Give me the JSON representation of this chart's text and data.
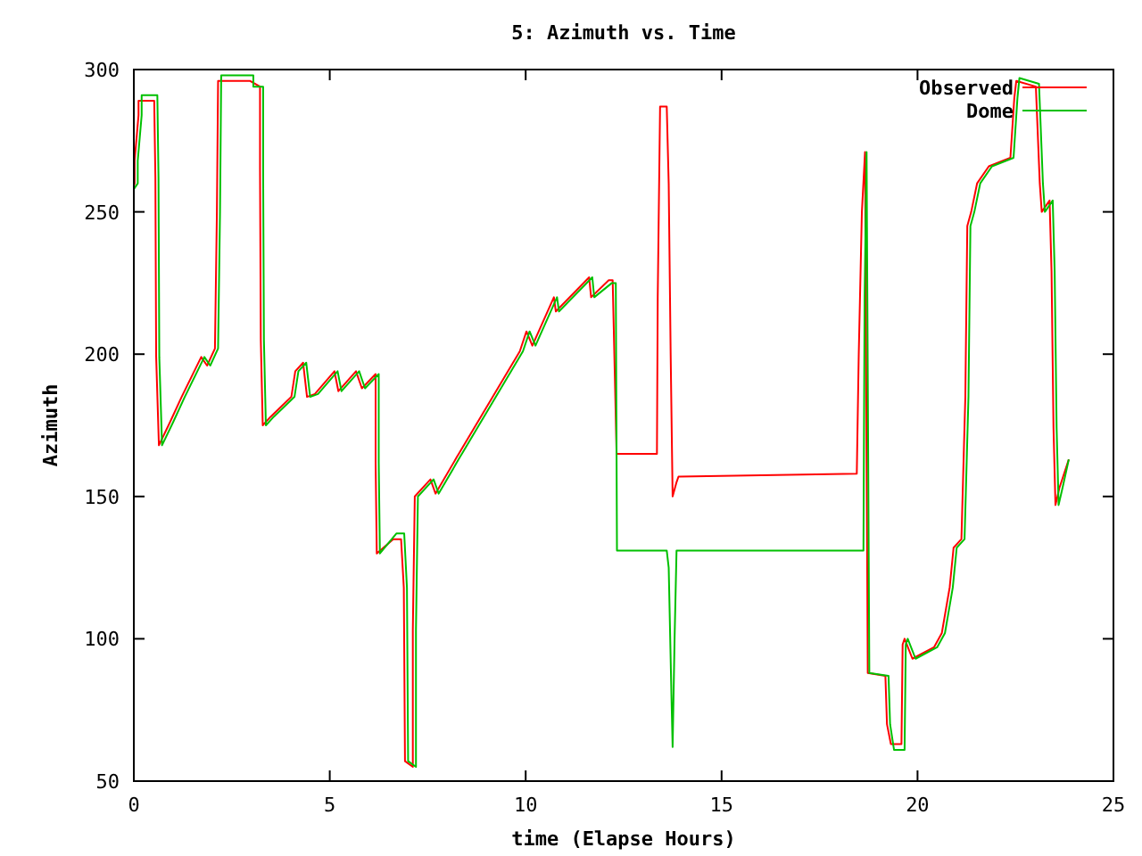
{
  "chart_data": {
    "type": "line",
    "title": "5: Azimuth vs. Time",
    "xlabel": "time (Elapse Hours)",
    "ylabel": "Azimuth",
    "xlim": [
      0,
      25
    ],
    "xticks": [
      0,
      5,
      10,
      15,
      20,
      25
    ],
    "ylim": [
      50,
      300
    ],
    "yticks": [
      50,
      100,
      150,
      200,
      250,
      300
    ],
    "legend": "top right",
    "line_style": "solid",
    "marker": "none",
    "series": [
      {
        "name": "Observed",
        "color": "#ff0000",
        "x": [
          0,
          0.02,
          0.02,
          0.12,
          0.12,
          0.52,
          0.55,
          0.57,
          0.64,
          0.92,
          1.22,
          1.72,
          1.87,
          2.07,
          2.12,
          2.15,
          2.97,
          3.22,
          3.22,
          3.24,
          3.29,
          3.49,
          4.02,
          4.12,
          4.32,
          4.42,
          4.62,
          5.12,
          5.22,
          5.67,
          5.82,
          6.17,
          6.17,
          6.2,
          6.62,
          6.82,
          6.89,
          6.92,
          7.12,
          7.12,
          7.17,
          7.57,
          7.7,
          8.25,
          9.85,
          10.02,
          10.17,
          10.72,
          10.77,
          11.62,
          11.67,
          12.12,
          12.22,
          12.32,
          13.35,
          13.37,
          13.43,
          13.6,
          13.65,
          13.7,
          13.75,
          13.85,
          13.9,
          18.45,
          18.5,
          18.58,
          18.66,
          18.73,
          19.18,
          19.22,
          19.32,
          19.59,
          19.62,
          19.67,
          19.87,
          20.42,
          20.62,
          20.82,
          20.92,
          21.12,
          21.22,
          21.27,
          21.37,
          21.52,
          21.82,
          22.37,
          22.47,
          22.52,
          23.02,
          23.12,
          23.17,
          23.37,
          23.42,
          23.47,
          23.52,
          23.62,
          23.86
        ],
        "values": [
          259,
          260,
          268,
          284,
          289,
          289,
          262,
          199,
          168,
          176,
          185,
          199,
          196,
          202,
          250,
          296,
          296,
          294,
          265,
          205,
          175,
          178,
          185,
          194,
          197,
          185,
          186,
          194,
          187,
          194,
          188,
          193,
          162,
          130,
          135,
          135,
          118,
          57,
          55,
          103,
          150,
          156,
          151,
          164,
          201,
          208,
          203,
          220,
          215,
          227,
          220,
          226,
          226,
          165,
          165,
          220,
          287,
          287,
          260,
          200,
          150,
          155,
          157,
          158,
          200,
          250,
          271,
          88,
          87,
          70,
          63,
          63,
          98,
          100,
          93,
          97,
          102,
          118,
          132,
          135,
          185,
          245,
          250,
          260,
          266,
          269,
          290,
          296,
          294,
          260,
          250,
          254,
          229,
          174,
          147,
          153,
          163
        ]
      },
      {
        "name": "Dome",
        "color": "#00c000",
        "x": [
          0,
          0.1,
          0.1,
          0.2,
          0.2,
          0.6,
          0.63,
          0.65,
          0.72,
          1.0,
          1.3,
          1.8,
          1.95,
          2.15,
          2.2,
          2.23,
          3.05,
          3.05,
          3.3,
          3.3,
          3.32,
          3.37,
          3.57,
          4.1,
          4.2,
          4.4,
          4.5,
          4.7,
          5.2,
          5.3,
          5.75,
          5.9,
          6.25,
          6.25,
          6.28,
          6.7,
          6.9,
          6.97,
          7.0,
          7.2,
          7.2,
          7.25,
          7.65,
          7.78,
          8.33,
          9.93,
          10.1,
          10.25,
          10.8,
          10.85,
          11.7,
          11.75,
          12.2,
          12.3,
          12.33,
          13.6,
          13.65,
          13.72,
          13.75,
          13.8,
          13.85,
          18.62,
          18.65,
          18.7,
          18.77,
          19.26,
          19.3,
          19.4,
          19.67,
          19.7,
          19.75,
          19.95,
          20.5,
          20.7,
          20.9,
          21.0,
          21.2,
          21.3,
          21.35,
          21.45,
          21.6,
          21.9,
          22.45,
          22.55,
          22.6,
          23.1,
          23.2,
          23.25,
          23.45,
          23.5,
          23.55,
          23.6,
          23.7,
          23.86
        ],
        "values": [
          258,
          260,
          268,
          284,
          291,
          291,
          262,
          199,
          168,
          176,
          185,
          199,
          196,
          202,
          250,
          298,
          298,
          294,
          294,
          265,
          205,
          175,
          178,
          185,
          194,
          197,
          185,
          186,
          194,
          187,
          194,
          188,
          193,
          162,
          130,
          137,
          137,
          118,
          57,
          55,
          103,
          150,
          156,
          151,
          164,
          201,
          208,
          203,
          220,
          215,
          227,
          220,
          225,
          225,
          131,
          131,
          125,
          80,
          62,
          100,
          131,
          131,
          220,
          271,
          88,
          87,
          70,
          61,
          61,
          98,
          100,
          93,
          97,
          102,
          118,
          132,
          135,
          185,
          245,
          250,
          260,
          266,
          269,
          290,
          297,
          295,
          260,
          250,
          254,
          229,
          174,
          147,
          153,
          163
        ]
      }
    ]
  }
}
